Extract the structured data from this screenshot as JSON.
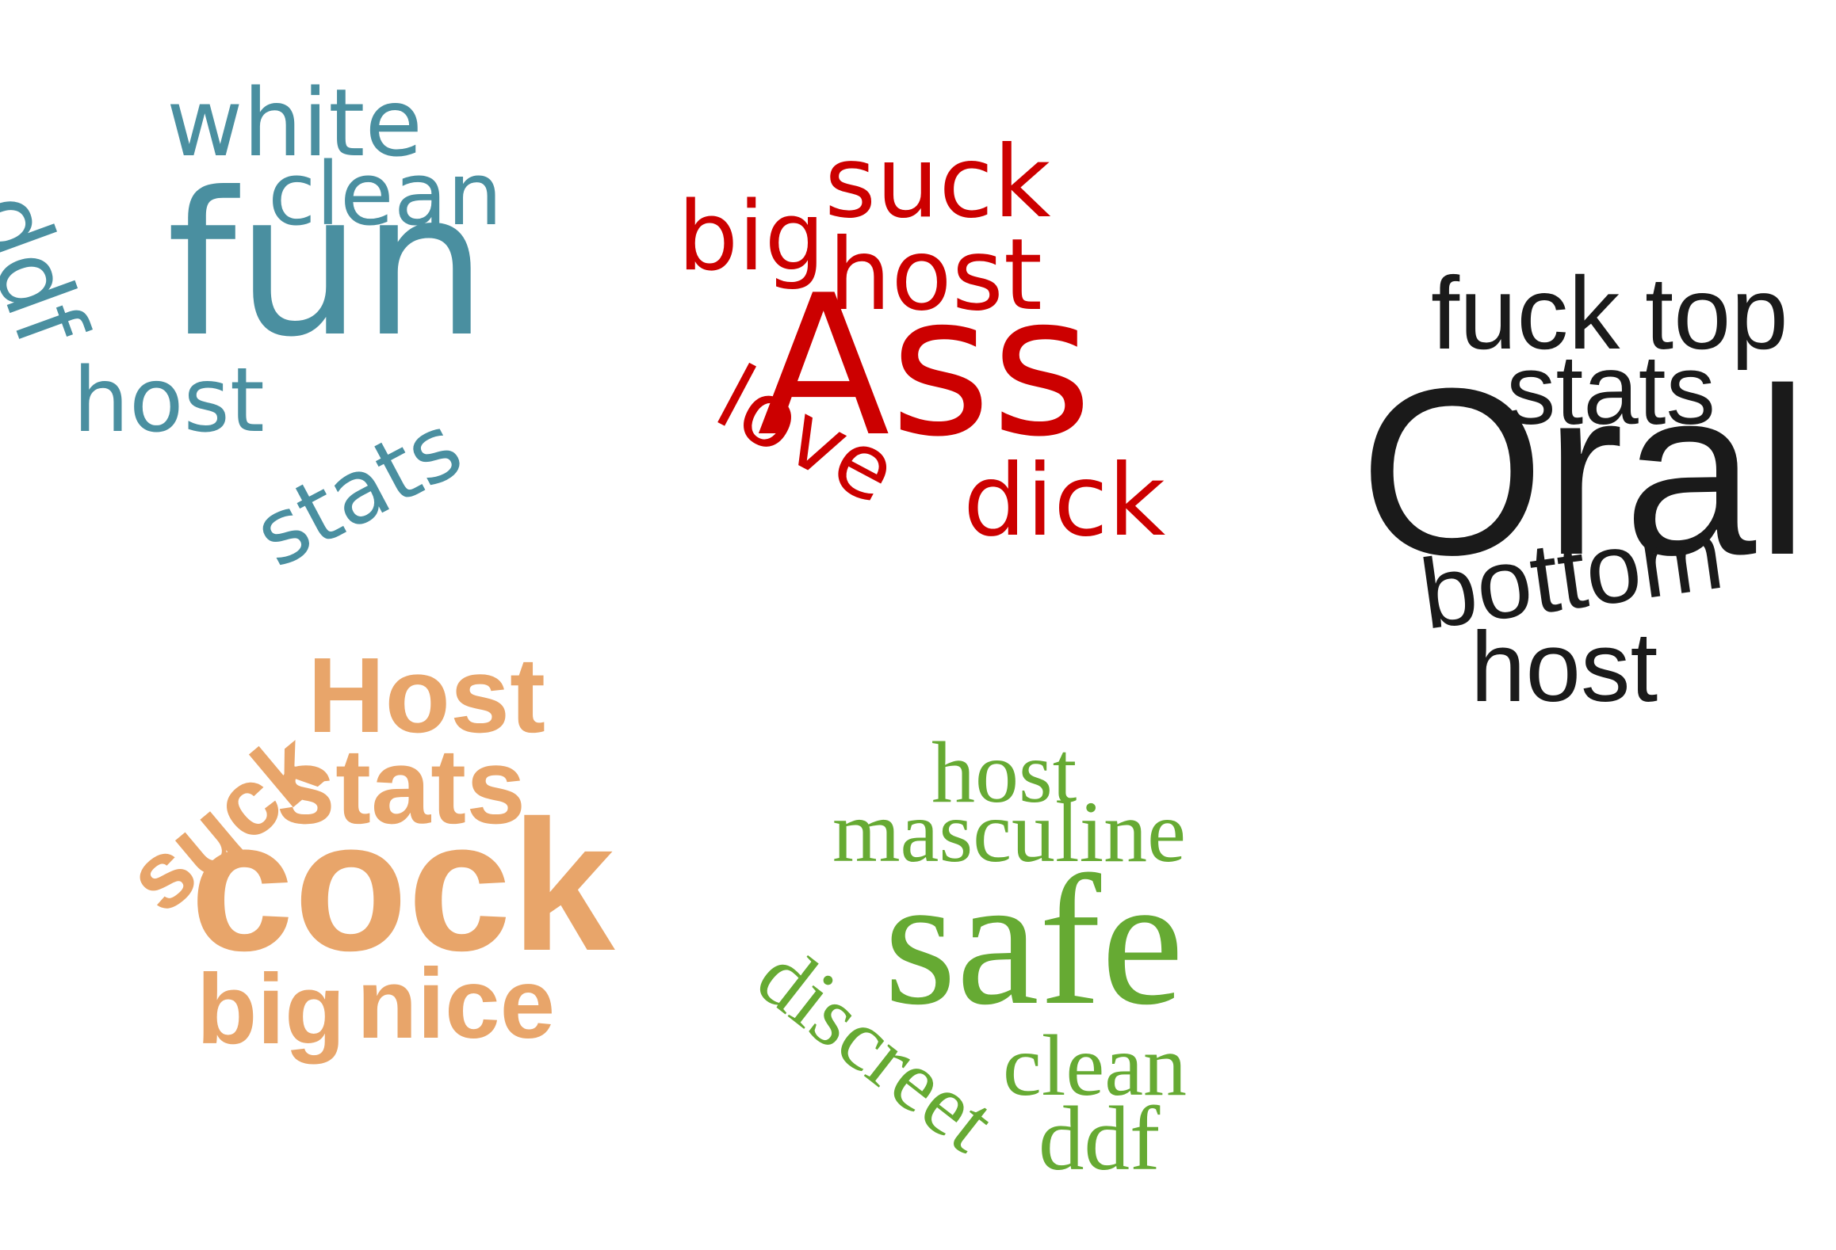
{
  "clouds": [
    {
      "id": "teal",
      "color": "#4a8fa0",
      "words": [
        "white",
        "clean",
        "ddf",
        "fun",
        "host",
        "stats"
      ]
    },
    {
      "id": "red",
      "color": "#cc0000",
      "words": [
        "suck",
        "big",
        "host",
        "Ass",
        "love",
        "dick"
      ]
    },
    {
      "id": "black",
      "color": "#1a1a1a",
      "words": [
        "fuck",
        "top",
        "stats",
        "Oral",
        "bottom",
        "host"
      ]
    },
    {
      "id": "orange",
      "color": "#e8a56a",
      "words": [
        "suck",
        "Host",
        "stats",
        "cock",
        "big",
        "nice"
      ]
    },
    {
      "id": "green",
      "color": "#66aa33",
      "words": [
        "host",
        "masculine",
        "safe",
        "discreet",
        "clean",
        "ddf"
      ]
    }
  ]
}
